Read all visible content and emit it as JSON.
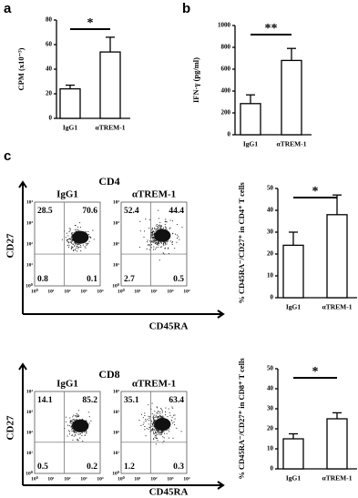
{
  "chart_data": [
    {
      "type": "bar",
      "panel_label": "a",
      "ylabel": "CPM (x10⁻³)",
      "categories": [
        "IgG1",
        "αTREM-1"
      ],
      "values": [
        24,
        54
      ],
      "errors": [
        3,
        12
      ],
      "ylim": [
        0,
        80
      ],
      "yticks": [
        0,
        20,
        40,
        60,
        80
      ],
      "significance": "*",
      "color": "#ffffff"
    },
    {
      "type": "bar",
      "panel_label": "b",
      "ylabel": "IFN-γ (pg/ml)",
      "categories": [
        "IgG1",
        "αTREM-1"
      ],
      "values": [
        285,
        680
      ],
      "errors": [
        80,
        110
      ],
      "ylim": [
        0,
        1000
      ],
      "yticks": [
        0,
        200,
        400,
        600,
        800,
        1000
      ],
      "significance": "**",
      "color": "#ffffff"
    },
    {
      "type": "bar",
      "ylabel": "% CD45RA⁻/CD27⁺ in CD4⁺ T cells",
      "categories": [
        "IgG1",
        "αTREM-1"
      ],
      "values": [
        24,
        38
      ],
      "errors": [
        6,
        9
      ],
      "ylim": [
        0,
        50
      ],
      "yticks": [
        0,
        10,
        20,
        30,
        40,
        50
      ],
      "significance": "*",
      "color": "#ffffff"
    },
    {
      "type": "bar",
      "ylabel": "% CD45RA⁻/CD27⁺ in CD8⁺ T cells",
      "categories": [
        "IgG1",
        "αTREM-1"
      ],
      "values": [
        15,
        25
      ],
      "errors": [
        2.5,
        3
      ],
      "ylim": [
        0,
        50
      ],
      "yticks": [
        0,
        10,
        20,
        30,
        40,
        50
      ],
      "significance": "*",
      "color": "#ffffff"
    }
  ],
  "flow_panels": [
    {
      "panel_label": "c",
      "title": "CD4",
      "xlabel": "CD45RA",
      "ylabel": "CD27",
      "axis_ticks": [
        "10⁰",
        "10¹",
        "10²",
        "10³",
        "10⁴"
      ],
      "plots": [
        {
          "name": "IgG1",
          "quadrants": [
            28.5,
            70.6,
            0.8,
            0.1
          ]
        },
        {
          "name": "αTREM-1",
          "quadrants": [
            52.4,
            44.4,
            2.7,
            0.5
          ]
        }
      ]
    },
    {
      "title": "CD8",
      "xlabel": "CD45RA",
      "ylabel": "CD27",
      "axis_ticks": [
        "10⁰",
        "10¹",
        "10²",
        "10³",
        "10⁴"
      ],
      "plots": [
        {
          "name": "IgG1",
          "quadrants": [
            14.1,
            85.2,
            0.5,
            0.2
          ]
        },
        {
          "name": "αTREM-1",
          "quadrants": [
            35.1,
            63.4,
            1.2,
            0.3
          ]
        }
      ]
    }
  ]
}
